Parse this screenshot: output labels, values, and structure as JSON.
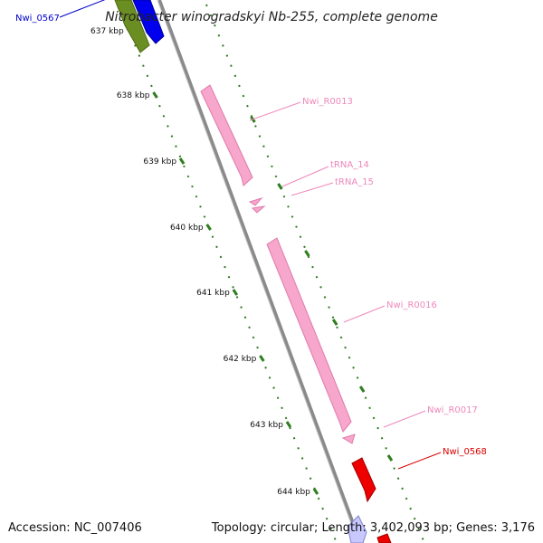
{
  "title": "Nitrobacter winogradskyi Nb-255, complete genome",
  "footer": {
    "accession": "Accession: NC_007406",
    "summary": "Topology: circular; Length: 3,402,093 bp; Genes: 3,176"
  },
  "ticks": [
    "637 kbp",
    "638 kbp",
    "639 kbp",
    "640 kbp",
    "641 kbp",
    "642 kbp",
    "643 kbp",
    "644 kbp"
  ],
  "features": [
    {
      "id": "Nwi_0567",
      "label": "Nwi_0567",
      "color": "#0000cc"
    },
    {
      "id": "Nwi_R0013",
      "label": "Nwi_R0013",
      "color": "#ee88bb"
    },
    {
      "id": "tRNA_14",
      "label": "tRNA_14",
      "color": "#ee88bb"
    },
    {
      "id": "tRNA_15",
      "label": "tRNA_15",
      "color": "#ee88bb"
    },
    {
      "id": "Nwi_R0016",
      "label": "Nwi_R0016",
      "color": "#ee88bb"
    },
    {
      "id": "Nwi_R0017",
      "label": "Nwi_R0017",
      "color": "#ee88bb"
    },
    {
      "id": "Nwi_0568",
      "label": "Nwi_0568",
      "color": "#dd0000"
    }
  ],
  "colors": {
    "backbone": "#8a8a8a",
    "tick": "#2e7d1e",
    "rna": "#f7a6cc",
    "gene_green": "#6b8e23",
    "gene_blue": "#0000ee",
    "gene_red": "#ee0000",
    "gene_light_blue": "#c8c8ff"
  }
}
